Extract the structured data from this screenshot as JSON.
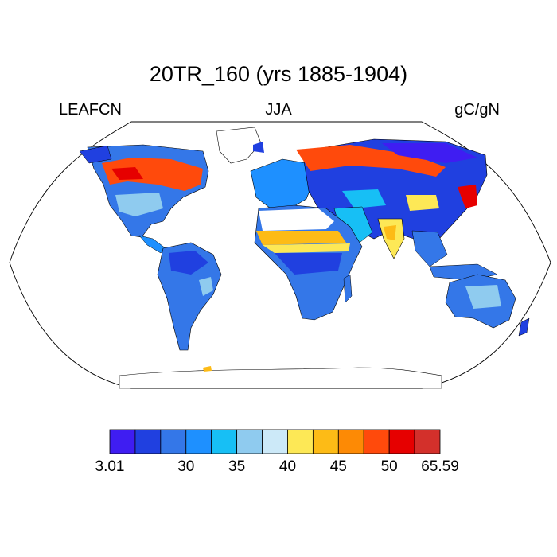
{
  "title": "20TR_160 (yrs 1885-1904)",
  "left_label": "LEAFCN",
  "center_label": "JJA",
  "right_label": "gC/gN",
  "colorbar": {
    "colors": [
      "#3f1df2",
      "#2040e0",
      "#3477e8",
      "#1e90ff",
      "#17bff5",
      "#8fcbef",
      "#cce9f8",
      "#fde856",
      "#fdbb16",
      "#fd8a05",
      "#ff4a0c",
      "#e60000",
      "#d3302b"
    ],
    "labels": [
      {
        "text": "3.01",
        "slot": 0
      },
      {
        "text": "30",
        "slot": 3
      },
      {
        "text": "35",
        "slot": 5
      },
      {
        "text": "40",
        "slot": 7
      },
      {
        "text": "45",
        "slot": 9
      },
      {
        "text": "50",
        "slot": 11
      },
      {
        "text": "65.59",
        "slot": 13
      }
    ]
  },
  "map": {
    "projection": "Robinson",
    "variable": "LEAFCN",
    "season": "JJA",
    "units": "gC/gN",
    "regions": [
      {
        "name": "north-america",
        "fill": "#3477e8"
      },
      {
        "name": "canada-boreal",
        "fill": "#ff4a0c"
      },
      {
        "name": "greenland",
        "fill": "#ffffff"
      },
      {
        "name": "south-america",
        "fill": "#3477e8"
      },
      {
        "name": "africa",
        "fill": "#3477e8"
      },
      {
        "name": "sahel-band",
        "fill": "#fdbb16"
      },
      {
        "name": "europe",
        "fill": "#1e90ff"
      },
      {
        "name": "siberia",
        "fill": "#2040e0"
      },
      {
        "name": "russia-boreal",
        "fill": "#ff4a0c"
      },
      {
        "name": "india",
        "fill": "#fde856"
      },
      {
        "name": "australia",
        "fill": "#3477e8"
      },
      {
        "name": "antarctica",
        "fill": "#ffffff"
      }
    ]
  }
}
